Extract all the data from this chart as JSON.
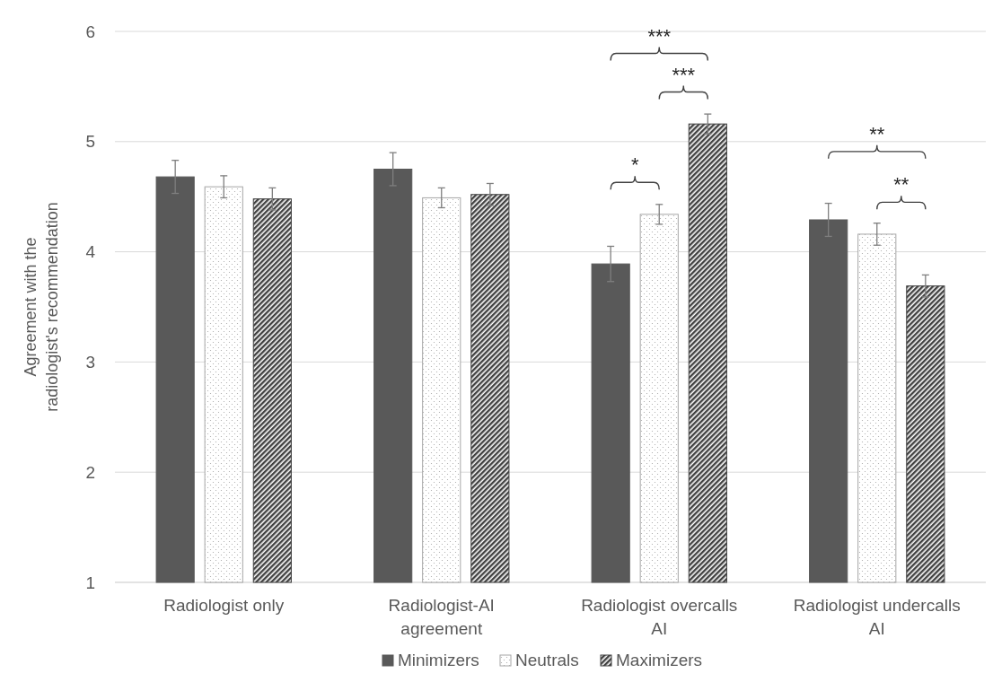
{
  "chart_data": {
    "type": "bar",
    "categories": [
      "Radiologist only",
      "Radiologist-AI agreement",
      "Radiologist overcalls AI",
      "Radiologist undercalls AI"
    ],
    "ylabel": "Agreement with the radiologist's recommendation",
    "series": [
      {
        "name": "Minimizers",
        "color": "#595959",
        "values": [
          4.68,
          4.75,
          3.89,
          4.29
        ],
        "errors": [
          0.15,
          0.15,
          0.16,
          0.15
        ]
      },
      {
        "name": "Neutrals",
        "color": "#a6a6a6",
        "values": [
          4.59,
          4.49,
          4.34,
          4.16
        ],
        "errors": [
          0.1,
          0.09,
          0.09,
          0.1
        ]
      },
      {
        "name": "Maximizers",
        "color": "#404040",
        "values": [
          4.48,
          4.52,
          5.16,
          3.69
        ],
        "errors": [
          0.1,
          0.1,
          0.09,
          0.1
        ]
      }
    ],
    "ylim": [
      1,
      6
    ],
    "yticks": [
      1,
      2,
      3,
      4,
      5,
      6
    ],
    "grid": "y",
    "legend": "bottom",
    "annotations": [
      "***",
      "***",
      "*",
      "**",
      "**"
    ]
  }
}
